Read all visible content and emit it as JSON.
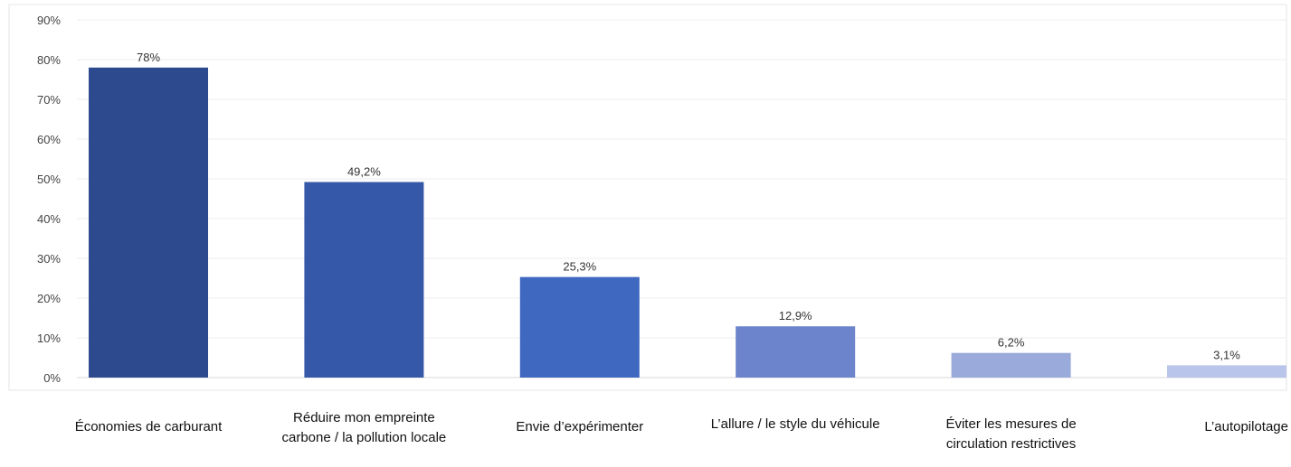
{
  "chart_data": {
    "type": "bar",
    "title": "",
    "xlabel": "",
    "ylabel": "",
    "ylim": [
      0,
      90
    ],
    "yticks": [
      0,
      10,
      20,
      30,
      40,
      50,
      60,
      70,
      80,
      90
    ],
    "ytick_labels": [
      "0%",
      "10%",
      "20%",
      "30%",
      "40%",
      "50%",
      "60%",
      "70%",
      "80%",
      "90%"
    ],
    "grid": true,
    "legend": "none",
    "categories": [
      "Économies de carburant",
      "Réduire mon empreinte carbone / la pollution locale",
      "Envie d’expérimenter",
      "L’allure / le style du véhicule",
      "Éviter les mesures de circulation restrictives",
      "L’autopilotage"
    ],
    "values": [
      78,
      49.2,
      25.3,
      12.9,
      6.2,
      3.1
    ],
    "data_labels": [
      "78%",
      "49,2%",
      "25,3%",
      "12,9%",
      "6,2%",
      "3,1%"
    ],
    "colors": [
      "#2e4a8e",
      "#3558a8",
      "#3f68c0",
      "#6b84cc",
      "#9aaadb",
      "#b9c5ea"
    ]
  }
}
